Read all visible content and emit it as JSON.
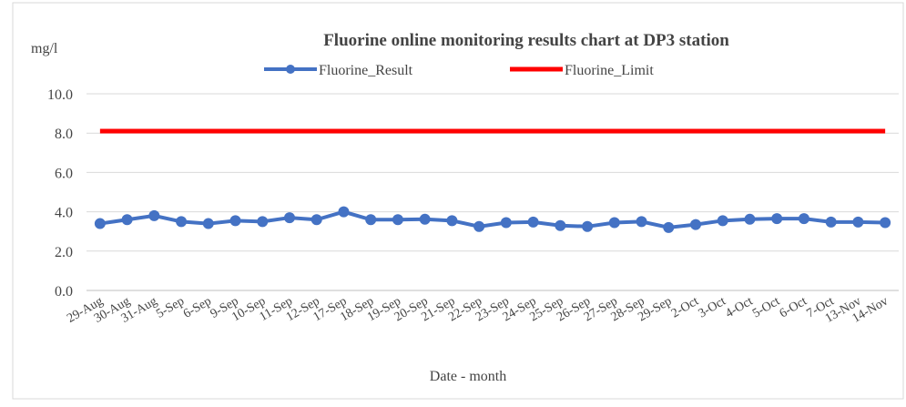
{
  "chart_data": {
    "type": "line",
    "title": "Fluorine online monitoring results chart at DP3 station",
    "y_label": "mg/l",
    "x_label": "Date - month",
    "categories": [
      "29-Aug",
      "30-Aug",
      "31-Aug",
      "5-Sep",
      "6-Sep",
      "9-Sep",
      "10-Sep",
      "11-Sep",
      "12-Sep",
      "17-Sep",
      "18-Sep",
      "19-Sep",
      "20-Sep",
      "21-Sep",
      "22-Sep",
      "23-Sep",
      "24-Sep",
      "25-Sep",
      "26-Sep",
      "27-Sep",
      "28-Sep",
      "29-Sep",
      "2-Oct",
      "3-Oct",
      "4-Oct",
      "5-Oct",
      "6-Oct",
      "7-Oct",
      "13-Nov",
      "14-Nov"
    ],
    "series": [
      {
        "name": "Fluorine_Result",
        "color": "#4472c4",
        "marker": true,
        "values": [
          3.4,
          3.6,
          3.8,
          3.5,
          3.4,
          3.55,
          3.5,
          3.7,
          3.6,
          4.0,
          3.6,
          3.6,
          3.62,
          3.55,
          3.25,
          3.45,
          3.48,
          3.3,
          3.25,
          3.45,
          3.5,
          3.2,
          3.35,
          3.55,
          3.62,
          3.65,
          3.65,
          3.48,
          3.48,
          3.45
        ]
      },
      {
        "name": "Fluorine_Limit",
        "color": "#ff0000",
        "marker": false,
        "values": [
          8.1,
          8.1,
          8.1,
          8.1,
          8.1,
          8.1,
          8.1,
          8.1,
          8.1,
          8.1,
          8.1,
          8.1,
          8.1,
          8.1,
          8.1,
          8.1,
          8.1,
          8.1,
          8.1,
          8.1,
          8.1,
          8.1,
          8.1,
          8.1,
          8.1,
          8.1,
          8.1,
          8.1,
          8.1,
          8.1
        ]
      }
    ],
    "ylim": [
      0,
      10
    ],
    "yticks": [
      {
        "value": 0,
        "label": "0.0"
      },
      {
        "value": 2,
        "label": "2.0"
      },
      {
        "value": 4,
        "label": "4.0"
      },
      {
        "value": 6,
        "label": "6.0"
      },
      {
        "value": 8,
        "label": "8.0"
      },
      {
        "value": 10,
        "label": "10.0"
      }
    ],
    "grid": true,
    "legend": "top"
  }
}
